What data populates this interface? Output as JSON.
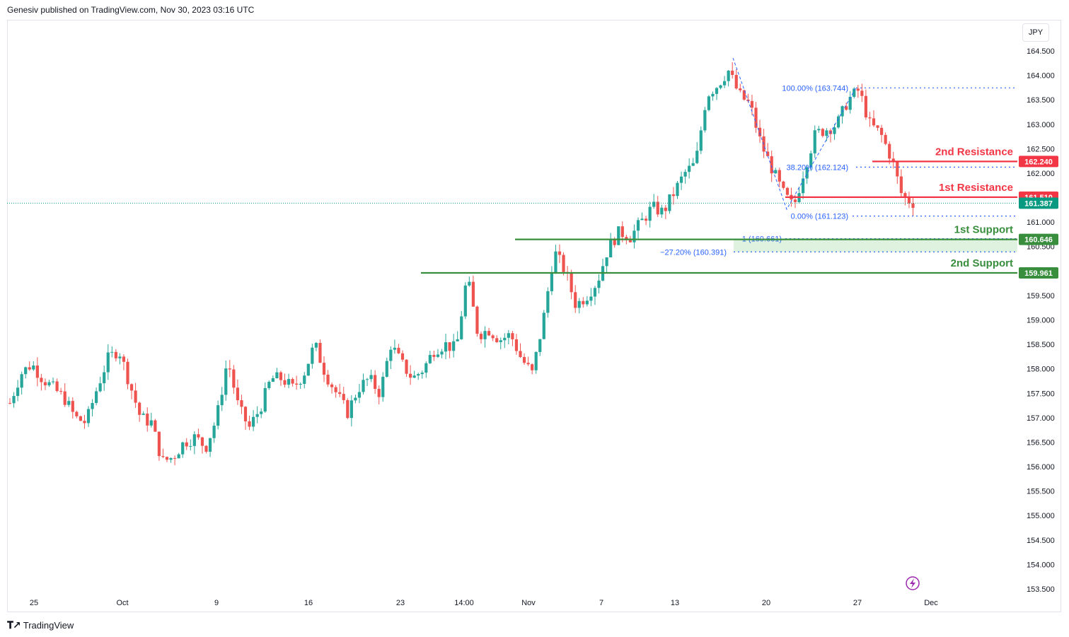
{
  "header": {
    "published": "Genesiv published on TradingView.com, Nov 30, 2023 03:16 UTC"
  },
  "currency": "JPY",
  "footer": {
    "brand": "TradingView"
  },
  "colors": {
    "up": "#26a69a",
    "down": "#ef5350",
    "resistance": "#f23645",
    "support": "#388e3c",
    "fib": "#2962ff",
    "current": "#089981"
  },
  "chart_data": {
    "type": "candlestick",
    "ylim": [
      153.3,
      164.7
    ],
    "y_ticks": [
      "153.500",
      "154.000",
      "154.500",
      "155.000",
      "155.500",
      "156.000",
      "156.500",
      "157.000",
      "157.500",
      "158.000",
      "158.500",
      "159.000",
      "159.500",
      "160.000",
      "160.500",
      "161.000",
      "161.500",
      "162.000",
      "162.500",
      "163.000",
      "163.500",
      "164.000",
      "164.500"
    ],
    "x_labels": [
      "25",
      "Oct",
      "9",
      "16",
      "23",
      "14:00",
      "Nov",
      "7",
      "13",
      "20",
      "27",
      "Dec"
    ],
    "close_series": [
      157.3,
      157.9,
      158.1,
      157.8,
      157.6,
      157.4,
      157.0,
      156.9,
      157.6,
      158.2,
      158.4,
      157.7,
      157.0,
      156.9,
      156.1,
      156.2,
      156.5,
      156.6,
      156.4,
      157.0,
      158.2,
      157.2,
      156.8,
      157.2,
      157.8,
      157.8,
      157.6,
      157.9,
      158.5,
      157.9,
      157.5,
      157.1,
      157.6,
      157.8,
      157.5,
      158.5,
      158.1,
      157.8,
      158.0,
      158.4,
      158.5,
      158.4,
      159.9,
      158.7,
      158.8,
      158.6,
      158.7,
      158.2,
      157.9,
      159.0,
      160.4,
      160.0,
      159.3,
      159.5,
      159.8,
      160.5,
      160.8,
      160.7,
      161.0,
      161.3,
      161.2,
      161.6,
      162.0,
      162.2,
      163.6,
      163.8,
      164.1,
      163.6,
      163.4,
      162.6,
      162.1,
      161.6,
      161.3,
      162.1,
      162.8,
      162.9,
      163.0,
      163.5,
      163.7,
      163.0,
      162.8,
      162.3,
      161.5,
      161.4
    ],
    "current_price": "161.387",
    "levels": [
      {
        "name": "2nd Resistance",
        "price": 162.24,
        "badge": "162.240",
        "kind": "resistance"
      },
      {
        "name": "1st Resistance",
        "price": 161.51,
        "badge": "161.510",
        "kind": "resistance"
      },
      {
        "name": "1st Support",
        "price": 160.646,
        "badge": "160.646",
        "kind": "support"
      },
      {
        "name": "2nd Support",
        "price": 159.961,
        "badge": "159.961",
        "kind": "support"
      }
    ],
    "fib": [
      {
        "label": "100.00% (163.744)",
        "price": 163.744
      },
      {
        "label": "38.20% (162.124)",
        "price": 162.124
      },
      {
        "label": "0.00% (161.123)",
        "price": 161.123
      },
      {
        "label": "1 (160.661)",
        "price": 160.661
      },
      {
        "label": "−27.20% (160.391)",
        "price": 160.391
      }
    ]
  }
}
